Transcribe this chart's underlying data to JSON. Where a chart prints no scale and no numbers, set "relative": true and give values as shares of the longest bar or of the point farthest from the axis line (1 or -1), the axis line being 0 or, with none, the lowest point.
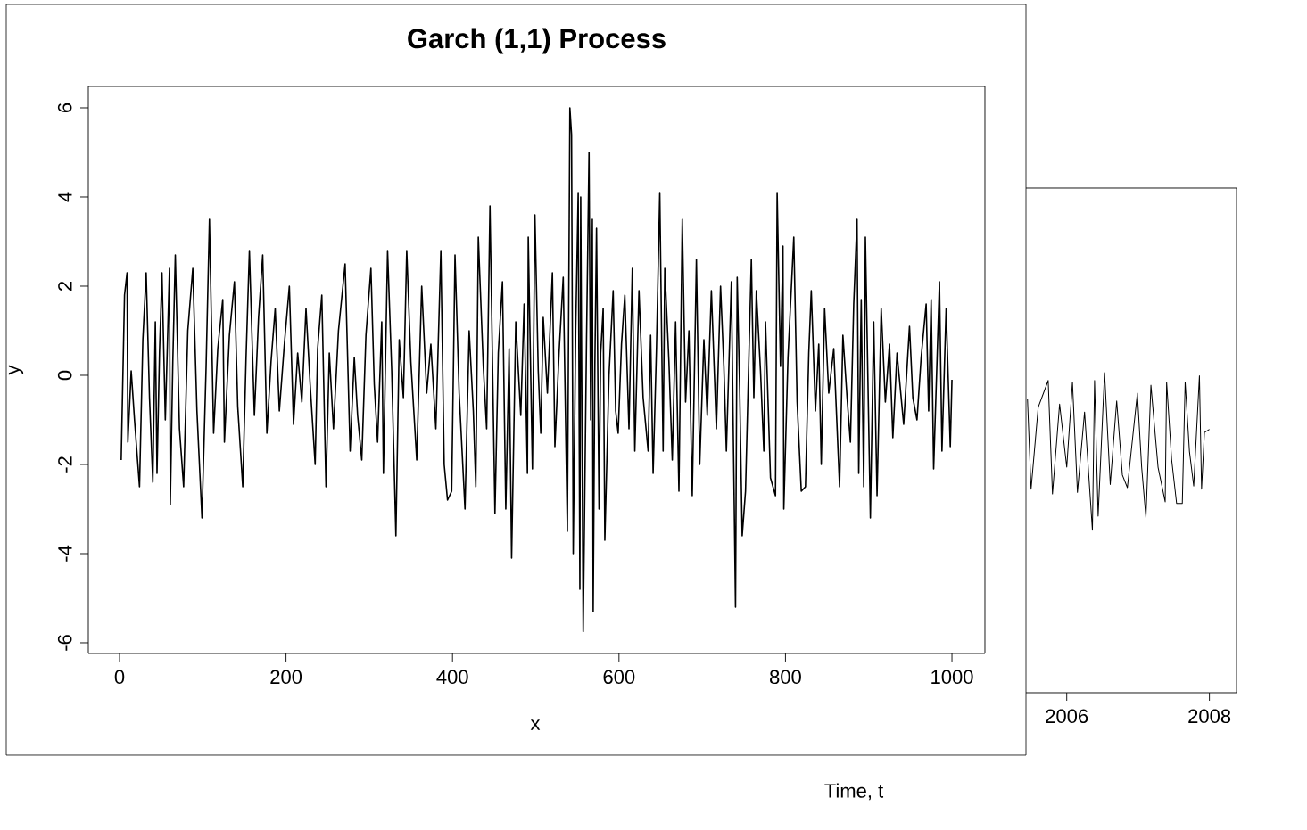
{
  "chart_data": [
    {
      "type": "line",
      "title": "Garch (1,1) Process",
      "xlabel": "x",
      "ylabel": "y",
      "color": "#000000",
      "xlim": [
        -37.5,
        1039.6
      ],
      "ylim": [
        -6.24,
        6.48
      ],
      "xticks": [
        0,
        200,
        400,
        600,
        800,
        1000
      ],
      "yticks": [
        -6,
        -4,
        -2,
        0,
        2,
        4,
        6
      ],
      "x": [
        2,
        6,
        9,
        10,
        14,
        18,
        24,
        28,
        32,
        36,
        40,
        43,
        45,
        48,
        51,
        55,
        60,
        61,
        64,
        67,
        72,
        77,
        82,
        88,
        93,
        99,
        104,
        108,
        113,
        118,
        124,
        126,
        132,
        138,
        142,
        148,
        152,
        156,
        162,
        167,
        172,
        177,
        182,
        187,
        192,
        198,
        204,
        209,
        214,
        219,
        224,
        229,
        235,
        238,
        243,
        248,
        252,
        257,
        263,
        271,
        277,
        282,
        286,
        291,
        296,
        302,
        306,
        310,
        315,
        317,
        322,
        327,
        332,
        336,
        341,
        345,
        350,
        357,
        363,
        369,
        374,
        380,
        386,
        390,
        394,
        399,
        403,
        408,
        415,
        420,
        425,
        428,
        431,
        437,
        441,
        445,
        451,
        455,
        460,
        464,
        468,
        471,
        476,
        482,
        486,
        490,
        491,
        496,
        499,
        503,
        506,
        509,
        514,
        520,
        523,
        528,
        533,
        538,
        541,
        543,
        545,
        548,
        551,
        553,
        554,
        557,
        561,
        564,
        566,
        568,
        569,
        571,
        573,
        576,
        578,
        581,
        583,
        588,
        593,
        596,
        599,
        603,
        607,
        612,
        616,
        619,
        624,
        629,
        635,
        638,
        641,
        645,
        649,
        653,
        655,
        660,
        664,
        668,
        672,
        676,
        680,
        684,
        688,
        693,
        697,
        702,
        706,
        711,
        717,
        722,
        726,
        729,
        735,
        740,
        742,
        745,
        748,
        752,
        759,
        762,
        765,
        770,
        774,
        776,
        782,
        788,
        790,
        794,
        797,
        798,
        803,
        810,
        814,
        819,
        824,
        828,
        831,
        836,
        840,
        843,
        847,
        852,
        858,
        865,
        869,
        874,
        878,
        882,
        886,
        888,
        891,
        894,
        896,
        902,
        906,
        910,
        915,
        920,
        925,
        929,
        934,
        938,
        942,
        949,
        953,
        958,
        963,
        969,
        972,
        975,
        978,
        985,
        988,
        993,
        998,
        1000
      ],
      "values": [
        -1.9,
        1.8,
        2.3,
        -1.5,
        0.1,
        -1.0,
        -2.5,
        0.8,
        2.3,
        -0.5,
        -2.4,
        1.2,
        -2.2,
        0.5,
        2.3,
        -1.0,
        2.4,
        -2.9,
        0.3,
        2.7,
        -1.2,
        -2.5,
        1.0,
        2.4,
        -0.8,
        -3.2,
        0.2,
        3.5,
        -1.3,
        0.6,
        1.7,
        -1.5,
        0.9,
        2.1,
        -0.7,
        -2.5,
        0.4,
        2.8,
        -0.9,
        1.3,
        2.7,
        -1.3,
        0.3,
        1.5,
        -0.8,
        0.7,
        2.0,
        -1.1,
        0.5,
        -0.6,
        1.5,
        -0.2,
        -2.0,
        0.6,
        1.8,
        -2.5,
        0.5,
        -1.2,
        1.0,
        2.5,
        -1.7,
        0.4,
        -0.9,
        -1.9,
        0.9,
        2.4,
        -0.2,
        -1.5,
        1.2,
        -2.2,
        2.8,
        0.1,
        -3.6,
        0.8,
        -0.5,
        2.8,
        0.3,
        -1.9,
        2.0,
        -0.4,
        0.7,
        -1.2,
        2.8,
        -2.0,
        -2.8,
        -2.6,
        2.7,
        -0.4,
        -3.0,
        1.0,
        -0.8,
        -2.5,
        3.1,
        0.2,
        -1.2,
        3.8,
        -3.1,
        0.5,
        2.1,
        -3.0,
        0.6,
        -4.1,
        1.2,
        -0.9,
        1.6,
        -2.2,
        3.1,
        -2.1,
        3.6,
        0.1,
        -1.3,
        1.3,
        -0.4,
        2.3,
        -1.6,
        0.5,
        2.2,
        -3.5,
        6.0,
        5.4,
        -4.0,
        1.0,
        4.1,
        -4.8,
        4.0,
        -5.75,
        0.8,
        5.0,
        -1.0,
        3.5,
        -5.3,
        0.2,
        3.3,
        -3.0,
        0.5,
        1.5,
        -3.7,
        0.0,
        1.9,
        -0.8,
        -1.3,
        0.7,
        1.8,
        -1.2,
        2.4,
        -1.7,
        1.9,
        -0.5,
        -1.7,
        0.9,
        -2.2,
        0.6,
        4.1,
        -1.7,
        2.4,
        0.3,
        -1.9,
        1.2,
        -2.6,
        3.5,
        -0.6,
        1.0,
        -2.7,
        2.6,
        -2.0,
        0.8,
        -0.9,
        1.9,
        -1.2,
        2.0,
        0.2,
        -1.7,
        2.1,
        -5.2,
        2.2,
        -0.3,
        -3.6,
        -2.6,
        2.6,
        -0.5,
        1.9,
        0.1,
        -1.7,
        1.2,
        -2.3,
        -2.7,
        4.1,
        0.2,
        2.9,
        -3.0,
        0.4,
        3.1,
        -0.6,
        -2.6,
        -2.5,
        0.5,
        1.9,
        -0.8,
        0.7,
        -2.0,
        1.5,
        -0.4,
        0.6,
        -2.5,
        0.9,
        -0.5,
        -1.5,
        1.6,
        3.5,
        -2.2,
        1.7,
        -2.5,
        3.1,
        -3.2,
        1.2,
        -2.7,
        1.5,
        -0.6,
        0.7,
        -1.4,
        0.5,
        -0.3,
        -1.1,
        1.1,
        -0.5,
        -1.0,
        0.4,
        1.6,
        -0.8,
        1.7,
        -2.1,
        2.1,
        -1.7,
        1.5,
        -1.6,
        -0.1
      ]
    },
    {
      "type": "line",
      "xlabel": "Time, t",
      "color": "#000000",
      "relative": true,
      "tick_labels": "x",
      "xlim": [
        1997.65,
        2008.38
      ],
      "xticks": [
        2006,
        2008
      ],
      "x": [
        2005.45,
        2005.5,
        2005.6,
        2005.74,
        2005.8,
        2005.9,
        2006.0,
        2006.08,
        2006.15,
        2006.25,
        2006.36,
        2006.39,
        2006.44,
        2006.53,
        2006.61,
        2006.7,
        2006.78,
        2006.85,
        2006.99,
        2007.05,
        2007.11,
        2007.18,
        2007.28,
        2007.38,
        2007.4,
        2007.47,
        2007.54,
        2007.62,
        2007.66,
        2007.72,
        2007.78,
        2007.86,
        2007.89,
        2007.93,
        2008.0
      ],
      "values": [
        0.83,
        0.26,
        0.78,
        0.95,
        0.23,
        0.8,
        0.4,
        0.94,
        0.24,
        0.75,
        0.0,
        0.95,
        0.09,
        1.0,
        0.29,
        0.82,
        0.35,
        0.27,
        0.87,
        0.4,
        0.08,
        0.92,
        0.4,
        0.18,
        0.94,
        0.45,
        0.17,
        0.17,
        0.94,
        0.5,
        0.28,
        0.98,
        0.26,
        0.62,
        0.64
      ]
    }
  ]
}
